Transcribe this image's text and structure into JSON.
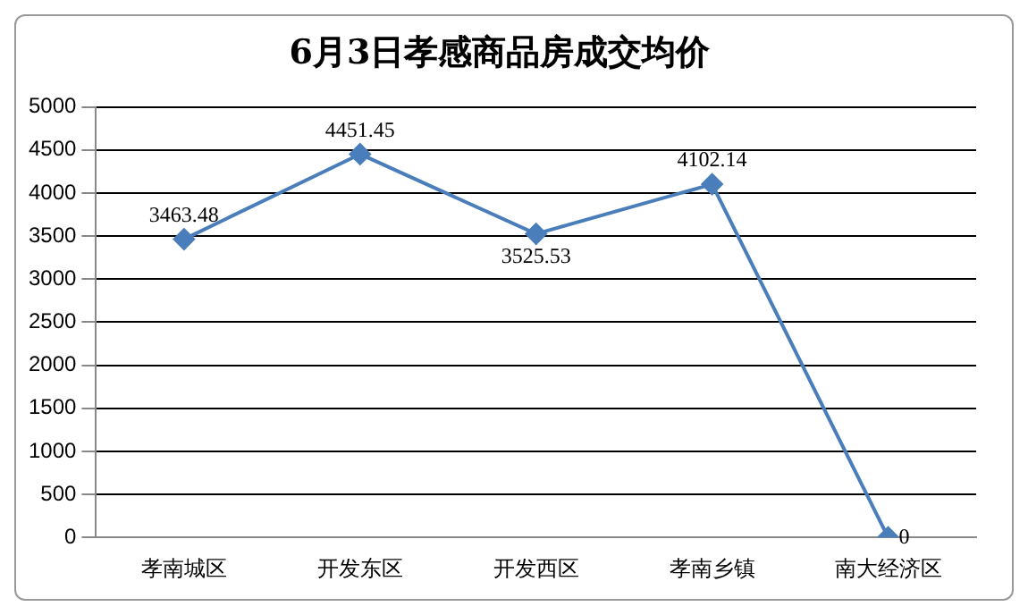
{
  "chart_data": {
    "type": "line",
    "title": "6月3日孝感商品房成交均价",
    "categories": [
      "孝南城区",
      "开发东区",
      "开发西区",
      "孝南乡镇",
      "南大经济区"
    ],
    "series": [
      {
        "color": "#4a7ebb",
        "values": [
          3463.48,
          4451.45,
          3525.53,
          4102.14,
          0
        ]
      }
    ],
    "ylim": [
      0,
      5000
    ],
    "yticks": [
      0,
      500,
      1000,
      1500,
      2000,
      2500,
      3000,
      3500,
      4000,
      4500,
      5000
    ],
    "grid": "y",
    "legend": false,
    "marker": "diamond",
    "line_style": "solid",
    "data_labels": true
  }
}
